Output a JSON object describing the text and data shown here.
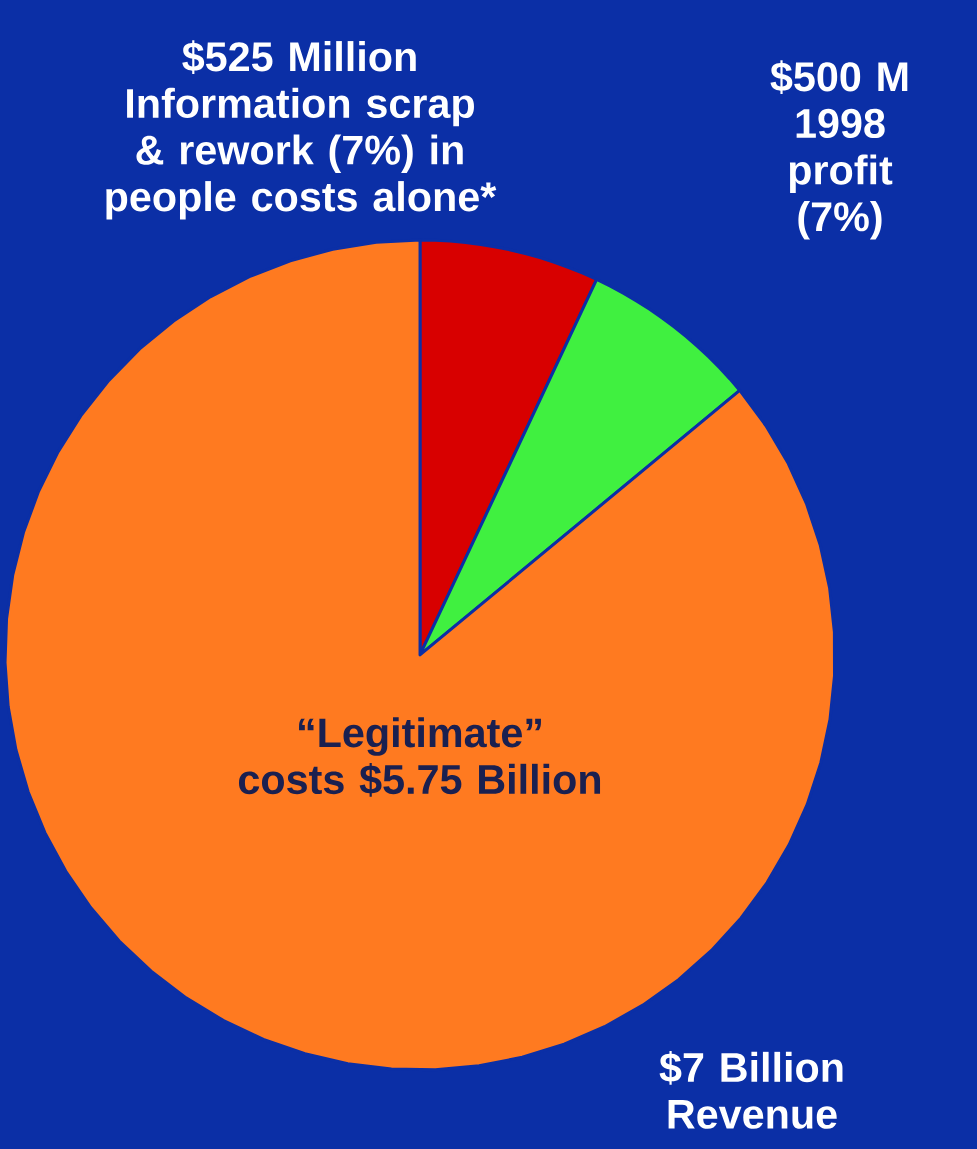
{
  "chart_data": {
    "type": "pie",
    "categories": [
      "$525 Million Information scrap & rework (7%) in people costs alone*",
      "$500 M 1998 profit (7%)",
      "“Legitimate” costs $5.75 Billion"
    ],
    "values": [
      7,
      7,
      86
    ],
    "colors": [
      "#d80000",
      "#40f040",
      "#ff7a20"
    ],
    "annotations": [
      "$7 Billion Revenue"
    ]
  }
}
